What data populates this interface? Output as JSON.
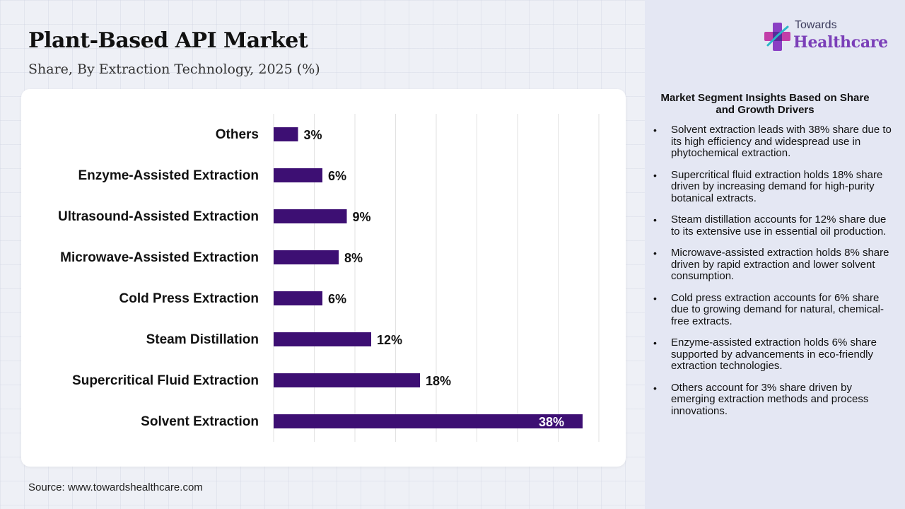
{
  "header": {
    "title": "Plant-Based API Market",
    "subtitle": "Share, By Extraction Technology, 2025 (%)"
  },
  "chart_data": {
    "type": "bar",
    "orientation": "horizontal",
    "categories": [
      "Others",
      "Enzyme-Assisted Extraction",
      "Ultrasound-Assisted Extraction",
      "Microwave-Assisted Extraction",
      "Cold Press Extraction",
      "Steam Distillation",
      "Supercritical Fluid Extraction",
      "Solvent Extraction"
    ],
    "values": [
      3,
      6,
      9,
      8,
      6,
      12,
      18,
      38
    ],
    "value_labels": [
      "3%",
      "6%",
      "9%",
      "8%",
      "6%",
      "12%",
      "18%",
      "38%"
    ],
    "xlim": [
      0,
      40
    ],
    "grid": true,
    "bar_color": "#3d0f73"
  },
  "footer": {
    "source": "Source: www.towardshealthcare.com"
  },
  "logo": {
    "line1": "Towards",
    "line2": "Healthcare"
  },
  "insights": {
    "heading": "Market Segment Insights Based on Share and Growth Drivers",
    "bullet": "•",
    "items": [
      "Solvent extraction leads with 38% share due to its high efficiency and widespread use in phytochemical extraction.",
      "Supercritical fluid extraction holds 18% share driven by increasing demand for high-purity botanical extracts.",
      "Steam distillation accounts for 12% share due to its extensive use in essential oil production.",
      "Microwave-assisted extraction holds 8% share driven by rapid extraction and lower solvent consumption.",
      "Cold press extraction accounts for 6% share due to growing demand for natural, chemical-free extracts.",
      "Enzyme-assisted extraction holds 6% share supported by advancements in eco-friendly extraction technologies.",
      "Others account for 3% share driven by emerging extraction methods and process innovations."
    ]
  },
  "colors": {
    "bar": "#3d0f73",
    "logo_accent": "#7b3fb8",
    "panel_bg": "#e4e7f3"
  }
}
